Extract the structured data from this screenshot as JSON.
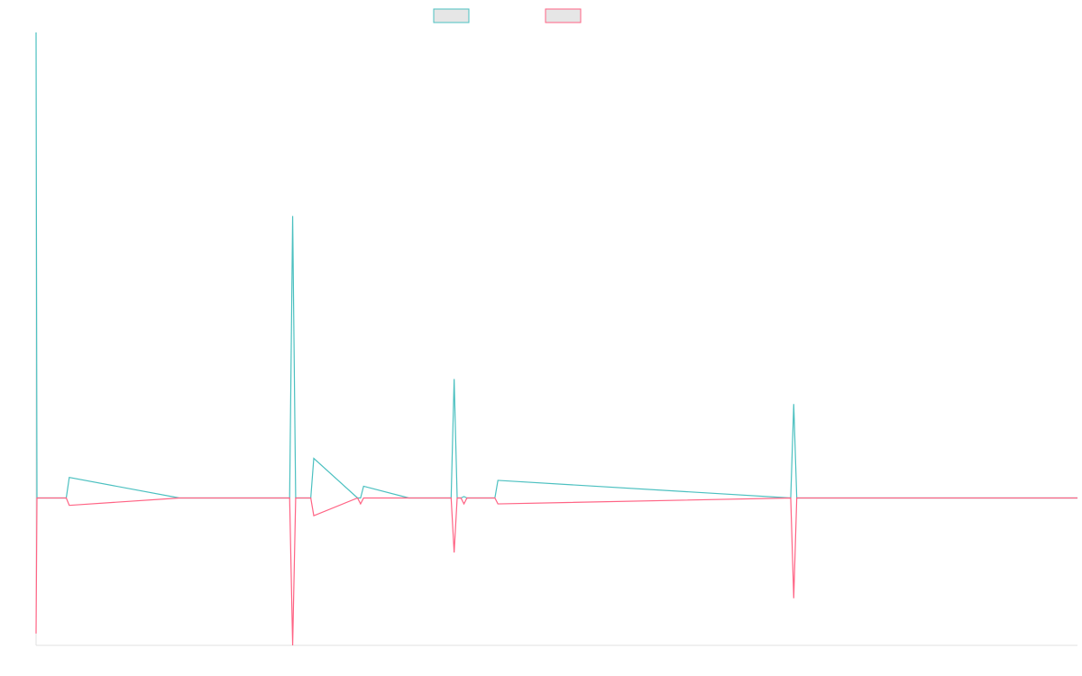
{
  "chart_data": {
    "type": "line",
    "title": "",
    "xlabel": "",
    "ylabel": "",
    "grid": false,
    "legend_placement": "top-center",
    "ylim": [
      -1,
      3.17
    ],
    "x": [
      0,
      0.12,
      4.0,
      4.4,
      19.0,
      19.4,
      19.8,
      33.6,
      34.0,
      34.4,
      36.0,
      36.4,
      36.8,
      42.6,
      43.0,
      43.4,
      49.4,
      49.8,
      50.2,
      55.0,
      55.4,
      55.8,
      56.3,
      56.7,
      57.1,
      58.0,
      58.6,
      59.2,
      60.4,
      60.8,
      61.2,
      100.0,
      100.4,
      100.8,
      138.0
    ],
    "x_range": [
      0,
      138
    ],
    "series": [
      {
        "name": "",
        "color": "#4bc0c0",
        "values": [
          3.17,
          0,
          0,
          0.14,
          0,
          0,
          0,
          0,
          1.92,
          0,
          0,
          0,
          0.27,
          0,
          0,
          0.08,
          0,
          0,
          0,
          0,
          0.81,
          0,
          0,
          0.01,
          0,
          0,
          0,
          0,
          0,
          0,
          0.12,
          0,
          0.64,
          0,
          0
        ]
      },
      {
        "name": "",
        "color": "#ff6384",
        "values": [
          -0.92,
          0,
          0,
          -0.05,
          0,
          0,
          0,
          0,
          -1.0,
          0,
          0,
          0,
          -0.12,
          0,
          -0.04,
          0,
          0,
          0,
          0,
          0,
          -0.37,
          0,
          0,
          -0.04,
          0,
          0,
          0,
          0,
          0,
          0,
          -0.04,
          0,
          -0.68,
          0,
          0
        ]
      }
    ]
  }
}
